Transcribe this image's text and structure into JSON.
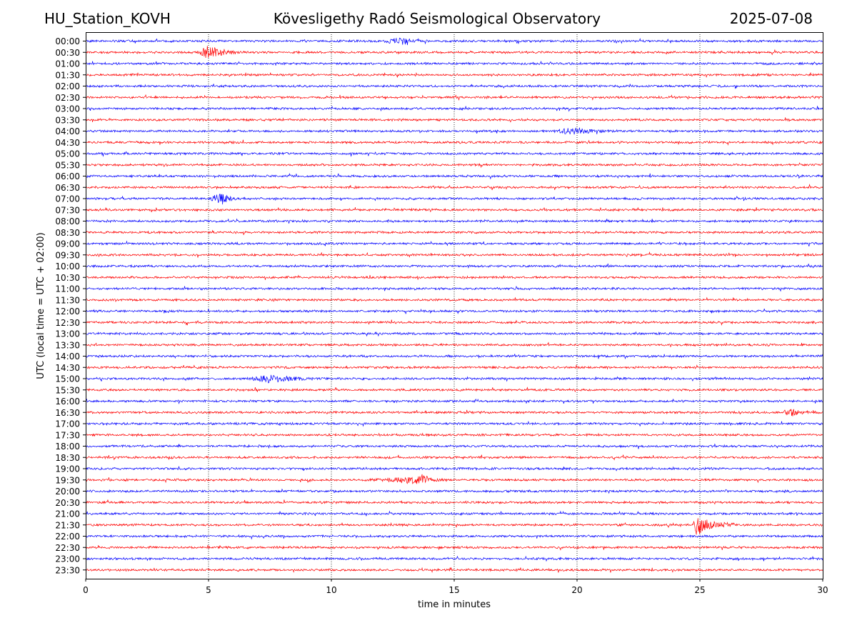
{
  "header": {
    "station": "HU_Station_KOVH",
    "observatory": "Kövesligethy Radó Seismological Observatory",
    "date": "2025-07-08"
  },
  "chart_data": {
    "type": "line",
    "title": "Kövesligethy Radó Seismological Observatory",
    "xlabel": "time in minutes",
    "ylabel": "UTC (local time = UTC + 02:00)",
    "xlim": [
      0,
      30
    ],
    "x_ticks": [
      0,
      5,
      10,
      15,
      20,
      25,
      30
    ],
    "grid": "vertical dotted at major x ticks",
    "colors": {
      "even_trace": "#0000ff",
      "odd_trace": "#ff0000",
      "grid": "#000000"
    },
    "rows": [
      "00:00",
      "00:30",
      "01:00",
      "01:30",
      "02:00",
      "02:30",
      "03:00",
      "03:30",
      "04:00",
      "04:30",
      "05:00",
      "05:30",
      "06:00",
      "06:30",
      "07:00",
      "07:30",
      "08:00",
      "08:30",
      "09:00",
      "09:30",
      "10:00",
      "10:30",
      "11:00",
      "11:30",
      "12:00",
      "12:30",
      "13:00",
      "13:30",
      "14:00",
      "14:30",
      "15:00",
      "15:30",
      "16:00",
      "16:30",
      "17:00",
      "17:30",
      "18:00",
      "18:30",
      "19:00",
      "19:30",
      "20:00",
      "20:30",
      "21:00",
      "21:30",
      "22:00",
      "22:30",
      "23:00",
      "23:30"
    ],
    "events": [
      {
        "row": "00:00",
        "start_min": 12.0,
        "end_min": 13.6,
        "peak_min": 13.1,
        "amplitude": "small"
      },
      {
        "row": "00:30",
        "start_min": 4.5,
        "end_min": 6.4,
        "peak_min": 5.0,
        "amplitude": "medium"
      },
      {
        "row": "04:00",
        "start_min": 19.0,
        "end_min": 21.2,
        "peak_min": 20.0,
        "amplitude": "small"
      },
      {
        "row": "07:00",
        "start_min": 5.0,
        "end_min": 6.2,
        "peak_min": 5.5,
        "amplitude": "medium"
      },
      {
        "row": "15:00",
        "start_min": 6.5,
        "end_min": 9.7,
        "peak_min": 7.5,
        "amplitude": "small"
      },
      {
        "row": "16:30",
        "start_min": 28.3,
        "end_min": 29.3,
        "peak_min": 28.8,
        "amplitude": "small"
      },
      {
        "row": "19:30",
        "start_min": 11.5,
        "end_min": 14.6,
        "peak_min": 13.8,
        "amplitude": "small"
      },
      {
        "row": "21:30",
        "start_min": 24.7,
        "end_min": 26.4,
        "peak_min": 24.85,
        "amplitude": "large"
      }
    ]
  }
}
